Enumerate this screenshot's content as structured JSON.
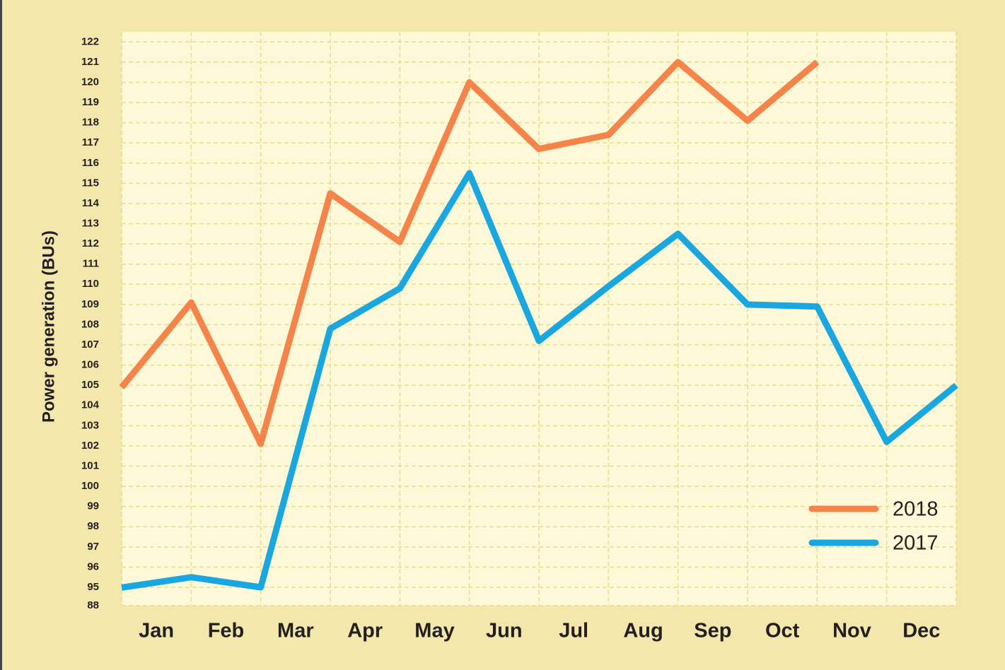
{
  "chart_data": {
    "type": "line",
    "y_label": "Power generation (BUs)",
    "x": [
      0,
      1,
      2,
      3,
      4,
      5,
      6,
      7,
      8,
      9,
      10,
      11,
      12
    ],
    "xlim": [
      0,
      12
    ],
    "xticks": [
      {
        "value": 0.5,
        "label": "Jan"
      },
      {
        "value": 1.5,
        "label": "Feb"
      },
      {
        "value": 2.5,
        "label": "Mar"
      },
      {
        "value": 3.5,
        "label": "Apr"
      },
      {
        "value": 4.5,
        "label": "May"
      },
      {
        "value": 5.5,
        "label": "Jun"
      },
      {
        "value": 6.5,
        "label": "Jul"
      },
      {
        "value": 7.5,
        "label": "Aug"
      },
      {
        "value": 8.5,
        "label": "Sep"
      },
      {
        "value": 9.5,
        "label": "Oct"
      },
      {
        "value": 10.5,
        "label": "Nov"
      },
      {
        "value": 11.5,
        "label": "Dec"
      }
    ],
    "ylim": [
      88,
      122.5
    ],
    "ybreak": [
      88,
      95
    ],
    "yticks": [
      88,
      95,
      96,
      97,
      98,
      99,
      100,
      101,
      102,
      103,
      104,
      105,
      106,
      107,
      108,
      109,
      110,
      111,
      112,
      113,
      114,
      115,
      116,
      117,
      118,
      119,
      120,
      121,
      122
    ],
    "grid": true,
    "legend": "lower right",
    "series": [
      {
        "name": "2018",
        "color": "#f4844a",
        "values": [
          104.9,
          109.1,
          102.1,
          114.5,
          112.1,
          120.0,
          116.7,
          117.4,
          121.0,
          118.1,
          121.0,
          null,
          null
        ]
      },
      {
        "name": "2017",
        "color": "#1aa7e0",
        "values": [
          94.9,
          95.5,
          95.0,
          107.8,
          109.8,
          115.5,
          107.2,
          109.9,
          112.5,
          109.0,
          108.9,
          102.2,
          105.0
        ]
      }
    ]
  }
}
